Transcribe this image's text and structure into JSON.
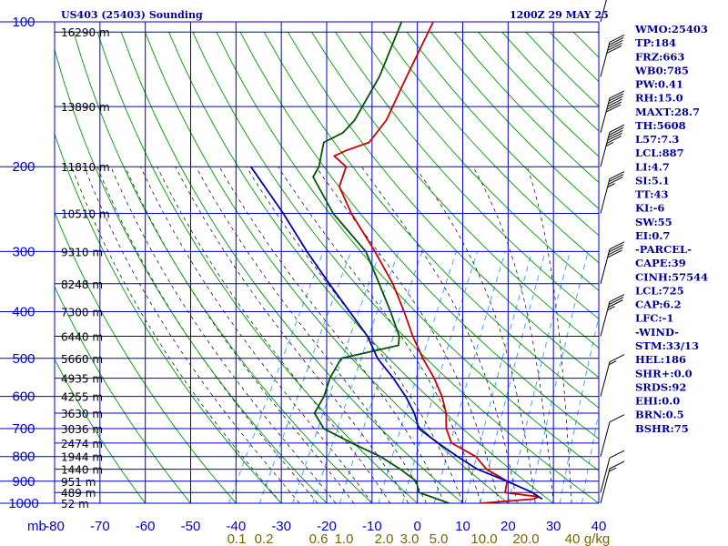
{
  "header": {
    "title": "US403 (25403) Sounding",
    "time": "1200Z 29 MAY 25"
  },
  "indices": [
    "WMO:25403",
    "TP:184",
    "FRZ:663",
    "WB0:785",
    "PW:0.41",
    "RH:15.0",
    "MAXT:28.7",
    "TH:5608",
    "L57:7.3",
    "LCL:887",
    "LI:4.7",
    "SI:5.1",
    "TT:43",
    "KI:-6",
    "SW:55",
    "EI:0.7",
    "-PARCEL-",
    "CAPE:39",
    "CINH:57544",
    "LCL:725",
    "CAP:6.2",
    "LFC:-1",
    "-WIND-",
    "STM:33/13",
    "HEL:186",
    "SHR+:0.0",
    "SRDS:92",
    "EHI:0.0",
    "BRN:0.5",
    "BSHR:75"
  ],
  "colors": {
    "grid": "#0000cc",
    "dry_adiabat": "#009900",
    "moist_adiabat": "#000000",
    "mixing_ratio": "#3399ff",
    "temperature": "#cc0000",
    "dewpoint": "#005500",
    "parcel": "#0000aa",
    "mixing_label": "#776600"
  },
  "chart_data": {
    "type": "line",
    "title": "US403 (25403) Sounding",
    "xlabel": "",
    "ylabel": "mb",
    "xlim": [
      -80,
      40
    ],
    "ylim": [
      1000,
      100
    ],
    "y_scale": "log",
    "grid": true,
    "x_ticks": [
      "-80",
      "-70",
      "-60",
      "-50",
      "-40",
      "-30",
      "-20",
      "-10",
      "0",
      "10",
      "20",
      "30",
      "40"
    ],
    "y_ticks": [
      "100",
      "200",
      "300",
      "400",
      "500",
      "600",
      "700",
      "800",
      "900",
      "1000"
    ],
    "y_axis_unit": "mb",
    "height_labels": [
      {
        "p": 105,
        "label": "16290 m"
      },
      {
        "p": 150,
        "label": "13890 m"
      },
      {
        "p": 200,
        "label": "11810 m"
      },
      {
        "p": 250,
        "label": "10510 m"
      },
      {
        "p": 300,
        "label": "9310 m"
      },
      {
        "p": 350,
        "label": "8248 m"
      },
      {
        "p": 400,
        "label": "7300 m"
      },
      {
        "p": 450,
        "label": "6440 m"
      },
      {
        "p": 500,
        "label": "5660 m"
      },
      {
        "p": 550,
        "label": "4935 m"
      },
      {
        "p": 600,
        "label": "4255 m"
      },
      {
        "p": 650,
        "label": "3630 m"
      },
      {
        "p": 700,
        "label": "3036 m"
      },
      {
        "p": 750,
        "label": "2474 m"
      },
      {
        "p": 800,
        "label": "1944 m"
      },
      {
        "p": 850,
        "label": "1440 m"
      },
      {
        "p": 900,
        "label": "951 m"
      },
      {
        "p": 950,
        "label": "489 m"
      },
      {
        "p": 1000,
        "label": "52 m"
      }
    ],
    "mixing_ratio_labels": [
      "0.1",
      "0.2",
      "0.6",
      "1.0",
      "2.0",
      "3.0",
      "5.0",
      "10.0",
      "20.0",
      "40",
      "g/kg"
    ],
    "series": [
      {
        "name": "Temperature",
        "points": [
          {
            "p": 1000,
            "t": 14
          },
          {
            "p": 980,
            "t": 25
          },
          {
            "p": 970,
            "t": 26
          },
          {
            "p": 950,
            "t": 18
          },
          {
            "p": 900,
            "t": 17
          },
          {
            "p": 850,
            "t": 11
          },
          {
            "p": 800,
            "t": 7
          },
          {
            "p": 750,
            "t": 0
          },
          {
            "p": 700,
            "t": -3
          },
          {
            "p": 650,
            "t": -5
          },
          {
            "p": 600,
            "t": -8
          },
          {
            "p": 550,
            "t": -12
          },
          {
            "p": 500,
            "t": -17
          },
          {
            "p": 450,
            "t": -22
          },
          {
            "p": 400,
            "t": -27
          },
          {
            "p": 350,
            "t": -33
          },
          {
            "p": 300,
            "t": -41
          },
          {
            "p": 250,
            "t": -51
          },
          {
            "p": 220,
            "t": -57
          },
          {
            "p": 200,
            "t": -58
          },
          {
            "p": 190,
            "t": -62
          },
          {
            "p": 185,
            "t": -60
          },
          {
            "p": 178,
            "t": -56
          },
          {
            "p": 160,
            "t": -55
          },
          {
            "p": 130,
            "t": -56
          },
          {
            "p": 100,
            "t": -57
          }
        ]
      },
      {
        "name": "Dewpoint",
        "points": [
          {
            "p": 1000,
            "t": 7
          },
          {
            "p": 950,
            "t": -1
          },
          {
            "p": 900,
            "t": -3
          },
          {
            "p": 850,
            "t": -8
          },
          {
            "p": 800,
            "t": -14
          },
          {
            "p": 750,
            "t": -22
          },
          {
            "p": 700,
            "t": -30
          },
          {
            "p": 650,
            "t": -34
          },
          {
            "p": 600,
            "t": -34
          },
          {
            "p": 550,
            "t": -35
          },
          {
            "p": 500,
            "t": -35
          },
          {
            "p": 470,
            "t": -24
          },
          {
            "p": 450,
            "t": -25
          },
          {
            "p": 400,
            "t": -30
          },
          {
            "p": 350,
            "t": -36
          },
          {
            "p": 300,
            "t": -43
          },
          {
            "p": 250,
            "t": -55
          },
          {
            "p": 210,
            "t": -64
          },
          {
            "p": 200,
            "t": -64
          },
          {
            "p": 178,
            "t": -66
          },
          {
            "p": 170,
            "t": -63
          },
          {
            "p": 160,
            "t": -62
          },
          {
            "p": 130,
            "t": -62
          },
          {
            "p": 100,
            "t": -64
          }
        ]
      },
      {
        "name": "Parcel",
        "points": [
          {
            "p": 980,
            "t": 27
          },
          {
            "p": 950,
            "t": 24
          },
          {
            "p": 900,
            "t": 17
          },
          {
            "p": 850,
            "t": 9
          },
          {
            "p": 800,
            "t": 3
          },
          {
            "p": 750,
            "t": -3
          },
          {
            "p": 700,
            "t": -9
          },
          {
            "p": 650,
            "t": -12
          },
          {
            "p": 600,
            "t": -16
          },
          {
            "p": 550,
            "t": -21
          },
          {
            "p": 500,
            "t": -27
          },
          {
            "p": 450,
            "t": -32
          },
          {
            "p": 400,
            "t": -39
          },
          {
            "p": 350,
            "t": -47
          },
          {
            "p": 300,
            "t": -56
          },
          {
            "p": 250,
            "t": -66
          },
          {
            "p": 200,
            "t": -79
          }
        ]
      }
    ],
    "wind_barbs": [
      {
        "p": 1000,
        "speed_kt": 15
      },
      {
        "p": 950,
        "speed_kt": 10
      },
      {
        "p": 800,
        "speed_kt": 10
      },
      {
        "p": 600,
        "speed_kt": 15
      },
      {
        "p": 450,
        "speed_kt": 35
      },
      {
        "p": 350,
        "speed_kt": 40
      },
      {
        "p": 250,
        "speed_kt": 35
      },
      {
        "p": 200,
        "speed_kt": 55
      },
      {
        "p": 170,
        "speed_kt": 60
      },
      {
        "p": 130,
        "speed_kt": 50
      },
      {
        "p": 100,
        "speed_kt": 30
      }
    ]
  }
}
